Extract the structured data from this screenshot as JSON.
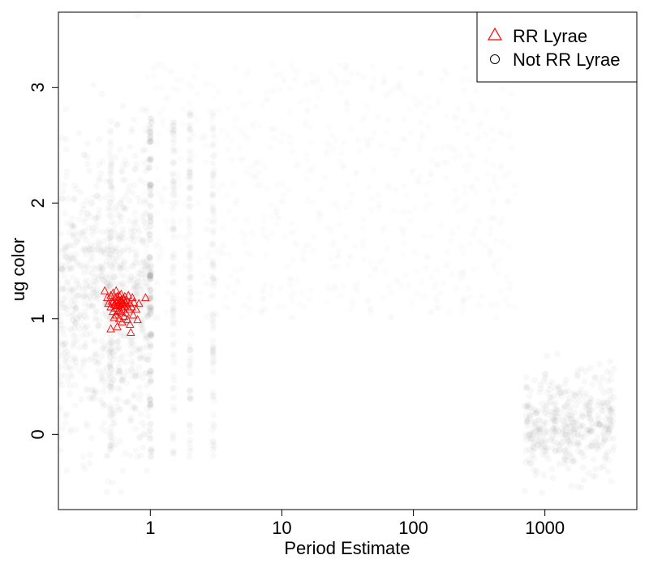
{
  "chart_data": {
    "type": "scatter",
    "xlabel": "Period Estimate",
    "ylabel": "ug color",
    "x_scale": "log",
    "xlim": [
      0.2,
      5000
    ],
    "ylim": [
      -0.65,
      3.65
    ],
    "x_ticks": [
      1,
      10,
      100,
      1000
    ],
    "x_tick_labels": [
      "1",
      "10",
      "100",
      "1000"
    ],
    "y_ticks": [
      0,
      1,
      2,
      3
    ],
    "y_tick_labels": [
      "0",
      "1",
      "2",
      "3"
    ],
    "grid": false,
    "legend_position": "top-right",
    "legend": [
      {
        "label": "RR Lyrae",
        "marker": "triangle",
        "color": "#ff0000"
      },
      {
        "label": "Not RR Lyrae",
        "marker": "circle",
        "color": "#000000"
      }
    ],
    "series": [
      {
        "name": "Not RR Lyrae",
        "marker": "circle",
        "color": "#000000",
        "description_regions": [
          {
            "x_range": [
              0.2,
              0.9
            ],
            "y_range": [
              0.8,
              3.2
            ],
            "density": "high"
          },
          {
            "x_range": [
              0.9,
              300
            ],
            "y_range": [
              0.8,
              3.0
            ],
            "density": "low"
          },
          {
            "x_range": [
              800,
              3500
            ],
            "y_range": [
              -0.3,
              0.5
            ],
            "density": "medium"
          }
        ],
        "vertical_streaks_x": [
          0.5,
          1,
          1.5,
          2,
          3
        ]
      },
      {
        "name": "RR Lyrae",
        "marker": "triangle",
        "color": "#ff0000",
        "points": [
          [
            0.45,
            1.24
          ],
          [
            0.47,
            1.18
          ],
          [
            0.48,
            1.13
          ],
          [
            0.5,
            1.2
          ],
          [
            0.5,
            1.1
          ],
          [
            0.5,
            0.91
          ],
          [
            0.51,
            1.15
          ],
          [
            0.52,
            1.06
          ],
          [
            0.52,
            1.22
          ],
          [
            0.53,
            1.12
          ],
          [
            0.53,
            1.01
          ],
          [
            0.54,
            1.18
          ],
          [
            0.54,
            1.09
          ],
          [
            0.55,
            1.14
          ],
          [
            0.55,
            1.24
          ],
          [
            0.55,
            1.03
          ],
          [
            0.56,
            1.11
          ],
          [
            0.56,
            0.93
          ],
          [
            0.57,
            1.16
          ],
          [
            0.57,
            1.07
          ],
          [
            0.58,
            1.2
          ],
          [
            0.58,
            1.12
          ],
          [
            0.58,
            1.0
          ],
          [
            0.59,
            1.15
          ],
          [
            0.6,
            1.1
          ],
          [
            0.6,
            1.21
          ],
          [
            0.6,
            1.05
          ],
          [
            0.61,
            1.13
          ],
          [
            0.61,
            0.97
          ],
          [
            0.62,
            1.17
          ],
          [
            0.62,
            1.08
          ],
          [
            0.63,
            1.12
          ],
          [
            0.63,
            1.02
          ],
          [
            0.64,
            1.19
          ],
          [
            0.64,
            1.1
          ],
          [
            0.65,
            1.14
          ],
          [
            0.65,
            1.05
          ],
          [
            0.66,
            1.16
          ],
          [
            0.67,
            1.1
          ],
          [
            0.67,
            0.99
          ],
          [
            0.68,
            1.2
          ],
          [
            0.69,
            1.08
          ],
          [
            0.7,
            1.13
          ],
          [
            0.7,
            0.95
          ],
          [
            0.71,
            0.88
          ],
          [
            0.72,
            1.1
          ],
          [
            0.73,
            1.18
          ],
          [
            0.74,
            1.03
          ],
          [
            0.75,
            1.14
          ],
          [
            0.78,
            1.08
          ],
          [
            0.8,
            0.99
          ],
          [
            0.82,
            1.13
          ],
          [
            0.92,
            1.18
          ],
          [
            0.52,
            1.14
          ],
          [
            0.56,
            1.19
          ],
          [
            0.59,
            1.06
          ],
          [
            0.6,
            1.16
          ],
          [
            0.62,
            1.14
          ],
          [
            0.57,
            1.12
          ],
          [
            0.54,
            1.12
          ]
        ]
      }
    ]
  }
}
